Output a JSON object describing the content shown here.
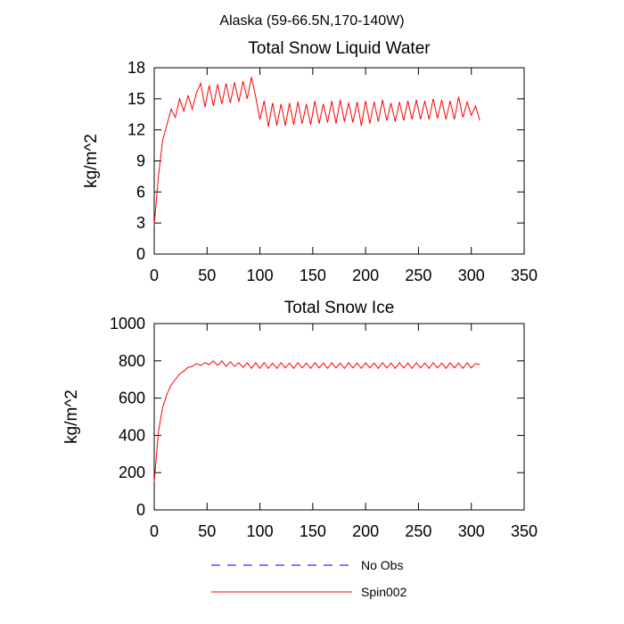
{
  "title": "Alaska (59-66.5N,170-140W)",
  "chart_data": [
    {
      "type": "line",
      "title": "Total Snow Liquid Water",
      "ylabel": "kg/m^2",
      "xlim": [
        0,
        350
      ],
      "xticks": [
        0,
        50,
        100,
        150,
        200,
        250,
        300,
        350
      ],
      "ylim": [
        0,
        18
      ],
      "yticks": [
        0,
        3,
        6,
        9,
        12,
        15,
        18
      ],
      "x": [
        0,
        4,
        8,
        12,
        16,
        20,
        24,
        28,
        32,
        36,
        40,
        44,
        48,
        52,
        56,
        60,
        64,
        68,
        72,
        76,
        80,
        84,
        88,
        92,
        96,
        100,
        104,
        108,
        112,
        116,
        120,
        124,
        128,
        132,
        136,
        140,
        144,
        148,
        152,
        156,
        160,
        164,
        168,
        172,
        176,
        180,
        184,
        188,
        192,
        196,
        200,
        204,
        208,
        212,
        216,
        220,
        224,
        228,
        232,
        236,
        240,
        244,
        248,
        252,
        256,
        260,
        264,
        268,
        272,
        276,
        280,
        284,
        288,
        292,
        296,
        300,
        304,
        308
      ],
      "series": [
        {
          "name": "Spin002",
          "color": "#ff0000",
          "values": [
            2.8,
            7.5,
            11,
            12.5,
            14,
            13.2,
            15,
            13.8,
            15.3,
            14,
            15.6,
            16.5,
            14.2,
            16.3,
            14.3,
            16.4,
            14.5,
            16.5,
            14.6,
            16.6,
            14.7,
            16.7,
            15,
            17.1,
            15.2,
            13.0,
            14.8,
            12.3,
            14.6,
            12.4,
            14.5,
            12.4,
            14.6,
            12.5,
            14.7,
            12.6,
            14.5,
            12.5,
            14.8,
            12.6,
            14.5,
            12.7,
            14.8,
            12.6,
            14.9,
            12.8,
            14.6,
            12.7,
            14.7,
            12.4,
            14.8,
            12.6,
            14.7,
            12.8,
            14.9,
            12.9,
            14.6,
            12.8,
            14.7,
            12.9,
            14.8,
            13,
            14.9,
            13,
            14.8,
            13,
            15,
            13.1,
            14.9,
            13,
            14.8,
            13,
            15.2,
            13.2,
            14.7,
            13.4,
            14.3,
            12.9
          ]
        }
      ]
    },
    {
      "type": "line",
      "title": "Total Snow Ice",
      "ylabel": "kg/m^2",
      "xlim": [
        0,
        350
      ],
      "xticks": [
        0,
        50,
        100,
        150,
        200,
        250,
        300,
        350
      ],
      "ylim": [
        0,
        1000
      ],
      "yticks": [
        0,
        200,
        400,
        600,
        800,
        1000
      ],
      "x": [
        0,
        4,
        8,
        12,
        16,
        20,
        24,
        28,
        32,
        36,
        40,
        44,
        48,
        52,
        56,
        60,
        64,
        68,
        72,
        76,
        80,
        84,
        88,
        92,
        96,
        100,
        104,
        108,
        112,
        116,
        120,
        124,
        128,
        132,
        136,
        140,
        144,
        148,
        152,
        156,
        160,
        164,
        168,
        172,
        176,
        180,
        184,
        188,
        192,
        196,
        200,
        204,
        208,
        212,
        216,
        220,
        224,
        228,
        232,
        236,
        240,
        244,
        248,
        252,
        256,
        260,
        264,
        268,
        272,
        276,
        280,
        284,
        288,
        292,
        296,
        300,
        304,
        308
      ],
      "series": [
        {
          "name": "Spin002",
          "color": "#ff0000",
          "values": [
            150,
            420,
            550,
            620,
            670,
            700,
            730,
            745,
            765,
            770,
            785,
            775,
            790,
            780,
            800,
            775,
            800,
            770,
            795,
            770,
            790,
            765,
            790,
            760,
            790,
            760,
            790,
            760,
            788,
            760,
            790,
            762,
            788,
            760,
            790,
            762,
            788,
            760,
            790,
            762,
            788,
            760,
            790,
            762,
            788,
            760,
            790,
            762,
            788,
            760,
            790,
            762,
            788,
            760,
            790,
            762,
            788,
            760,
            790,
            762,
            788,
            760,
            790,
            762,
            788,
            760,
            790,
            762,
            788,
            760,
            790,
            762,
            788,
            760,
            790,
            762,
            785,
            780
          ]
        }
      ]
    }
  ],
  "legend": [
    {
      "name": "No Obs",
      "color": "#0000ff",
      "dash": true
    },
    {
      "name": "Spin002",
      "color": "#ff0000",
      "dash": false
    }
  ]
}
